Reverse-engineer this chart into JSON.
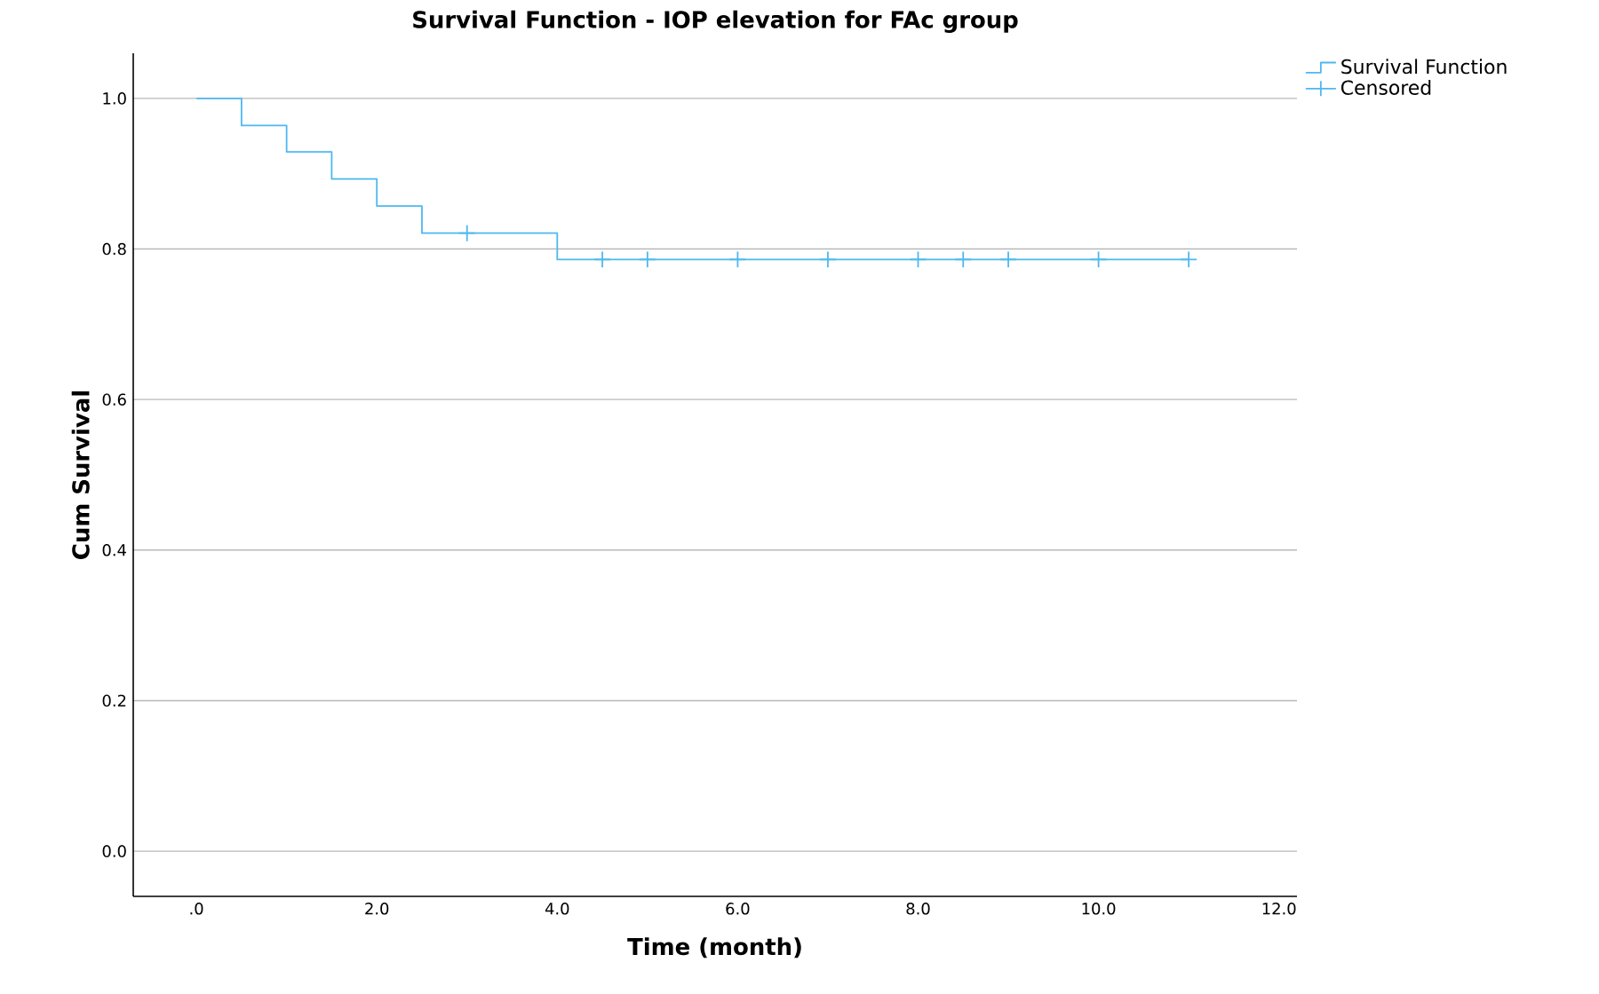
{
  "chart_data": {
    "type": "step",
    "title": "Survival Function - IOP elevation for FAc group",
    "xlabel": "Time (month)",
    "ylabel": "Cum Survival",
    "series": [
      {
        "name": "Survival Function",
        "color": "#4db8f0",
        "x": [
          0,
          0.5,
          1.0,
          1.5,
          2.0,
          2.5,
          4.0,
          11.0
        ],
        "values": [
          1.0,
          0.964,
          0.929,
          0.893,
          0.857,
          0.821,
          0.786,
          0.786
        ]
      },
      {
        "name": "Censored",
        "type": "scatter",
        "marker": "cross",
        "color": "#4db8f0",
        "x": [
          3.0,
          4.5,
          5.0,
          6.0,
          7.0,
          8.0,
          8.5,
          9.0,
          10.0,
          11.0
        ],
        "values": [
          0.821,
          0.786,
          0.786,
          0.786,
          0.786,
          0.786,
          0.786,
          0.786,
          0.786,
          0.786
        ]
      }
    ],
    "xlim": [
      -0.7,
      12.2
    ],
    "ylim": [
      -0.06,
      1.06
    ],
    "xticks": [
      {
        "value": 0,
        "label": ".0"
      },
      {
        "value": 2,
        "label": "2.0"
      },
      {
        "value": 4,
        "label": "4.0"
      },
      {
        "value": 6,
        "label": "6.0"
      },
      {
        "value": 8,
        "label": "8.0"
      },
      {
        "value": 10,
        "label": "10.0"
      },
      {
        "value": 12,
        "label": "12.0"
      }
    ],
    "yticks": [
      {
        "value": 0,
        "label": "0.0"
      },
      {
        "value": 0.2,
        "label": "0.2"
      },
      {
        "value": 0.4,
        "label": "0.4"
      },
      {
        "value": 0.6,
        "label": "0.6"
      },
      {
        "value": 0.8,
        "label": "0.8"
      },
      {
        "value": 1.0,
        "label": "1.0"
      }
    ],
    "grid": "y",
    "legend": "top right"
  }
}
